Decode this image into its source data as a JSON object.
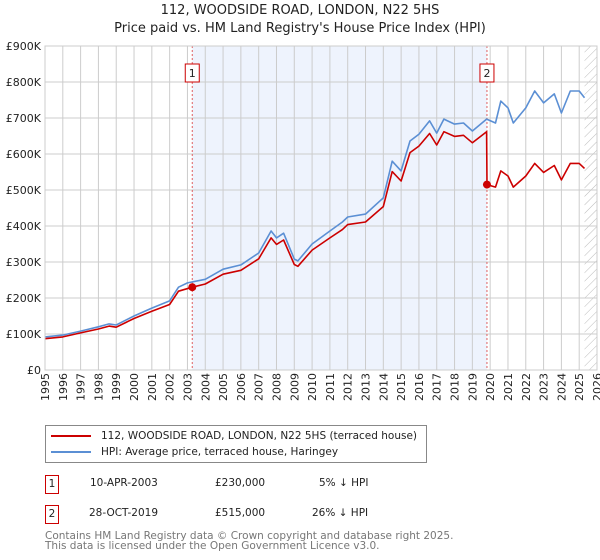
{
  "title": "112, WOODSIDE ROAD, LONDON, N22 5HS",
  "subtitle": "Price paid vs. HM Land Registry's House Price Index (HPI)",
  "chart_data": {
    "type": "line",
    "title": "112, WOODSIDE ROAD, LONDON, N22 5HS",
    "subtitle": "Price paid vs. HM Land Registry's House Price Index (HPI)",
    "xlim": [
      1995,
      2026
    ],
    "ylim": [
      0,
      900
    ],
    "y_unit": "thousand GBP",
    "yticks": [
      0,
      100,
      200,
      300,
      400,
      500,
      600,
      700,
      800,
      900
    ],
    "ytick_labels": [
      "£0",
      "£100K",
      "£200K",
      "£300K",
      "£400K",
      "£500K",
      "£600K",
      "£700K",
      "£800K",
      "£900K"
    ],
    "xticks": [
      "1995",
      "1996",
      "1997",
      "1998",
      "1999",
      "2000",
      "2001",
      "2002",
      "2003",
      "2004",
      "2005",
      "2006",
      "2007",
      "2008",
      "2009",
      "2010",
      "2011",
      "2012",
      "2013",
      "2014",
      "2015",
      "2016",
      "2017",
      "2018",
      "2019",
      "2020",
      "2021",
      "2022",
      "2023",
      "2024",
      "2025",
      "2026"
    ],
    "grid": true,
    "shaded_period": [
      2003.27,
      2019.82
    ],
    "forecast_hatch_from": 2025.3,
    "series": [
      {
        "name": "112, WOODSIDE ROAD, LONDON, N22 5HS (terraced house)",
        "color": "#cc0000",
        "x": [
          1995,
          1996,
          1997,
          1998,
          1998.6,
          1999,
          2000,
          2001,
          2002,
          2002.5,
          2003.27,
          2004,
          2005,
          2006,
          2007,
          2007.7,
          2008,
          2008.4,
          2009,
          2009.2,
          2010,
          2011,
          2011.7,
          2012,
          2013,
          2014,
          2014.5,
          2015,
          2015.5,
          2016,
          2016.6,
          2017,
          2017.4,
          2018,
          2018.5,
          2019,
          2019.8,
          2019.82,
          2020.3,
          2020.6,
          2021,
          2021.3,
          2022,
          2022.5,
          2023,
          2023.6,
          2024,
          2024.5,
          2025,
          2025.3
        ],
        "y": [
          87,
          92,
          103,
          114,
          122,
          119,
          143,
          163,
          182,
          219,
          230,
          239,
          266,
          277,
          309,
          367,
          349,
          361,
          293,
          288,
          333,
          367,
          390,
          404,
          411,
          454,
          551,
          525,
          604,
          622,
          657,
          625,
          662,
          649,
          652,
          631,
          662,
          515,
          508,
          553,
          539,
          508,
          539,
          574,
          549,
          568,
          528,
          574,
          574,
          560
        ]
      },
      {
        "name": "HPI: Average price, terraced house, Haringey",
        "color": "#5b8fd4",
        "x": [
          1995,
          1996,
          1997,
          1998,
          1998.6,
          1999,
          2000,
          2001,
          2002,
          2002.5,
          2003,
          2004,
          2005,
          2006,
          2007,
          2007.7,
          2008,
          2008.4,
          2009,
          2009.2,
          2010,
          2011,
          2011.7,
          2012,
          2013,
          2014,
          2014.5,
          2015,
          2015.5,
          2016,
          2016.6,
          2017,
          2017.4,
          2018,
          2018.5,
          2019,
          2019.8,
          2020.3,
          2020.6,
          2021,
          2021.3,
          2022,
          2022.5,
          2023,
          2023.6,
          2024,
          2024.5,
          2025,
          2025.3
        ],
        "y": [
          92,
          97,
          108,
          120,
          128,
          125,
          150,
          172,
          192,
          230,
          242,
          252,
          280,
          292,
          325,
          386,
          367,
          380,
          308,
          303,
          350,
          386,
          411,
          425,
          433,
          478,
          580,
          553,
          636,
          655,
          692,
          658,
          697,
          683,
          686,
          664,
          697,
          686,
          747,
          728,
          686,
          728,
          775,
          742,
          767,
          714,
          775,
          775,
          756
        ]
      }
    ],
    "annotations": [
      {
        "label": "1",
        "x": 2003.27,
        "y": 230
      },
      {
        "label": "2",
        "x": 2019.82,
        "y": 515
      }
    ]
  },
  "legend": [
    {
      "label": "112, WOODSIDE ROAD, LONDON, N22 5HS (terraced house)",
      "color": "#cc0000"
    },
    {
      "label": "HPI: Average price, terraced house, Haringey",
      "color": "#5b8fd4"
    }
  ],
  "sales": [
    {
      "num": "1",
      "date": "10-APR-2003",
      "price": "£230,000",
      "hpi": "5% ↓ HPI"
    },
    {
      "num": "2",
      "date": "28-OCT-2019",
      "price": "£515,000",
      "hpi": "26% ↓ HPI"
    }
  ],
  "footer": {
    "line1": "Contains HM Land Registry data © Crown copyright and database right 2025.",
    "line2": "This data is licensed under the Open Government Licence v3.0."
  }
}
